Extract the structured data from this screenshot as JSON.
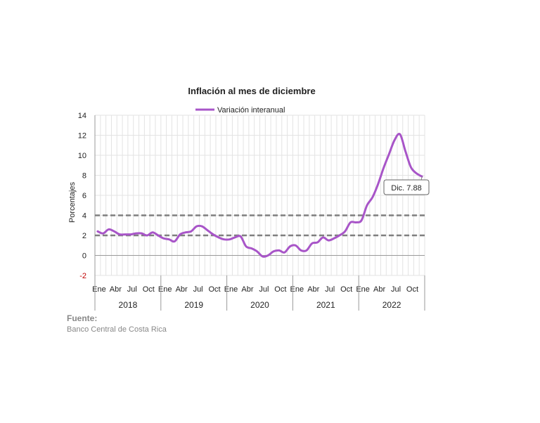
{
  "source": {
    "label": "Fuente:",
    "text": "Banco Central de Costa Rica"
  },
  "chart_data": {
    "type": "line",
    "title": "Inflación al mes de diciembre",
    "ylabel": "Porcentajes",
    "xlabel": "",
    "ylim": [
      -2,
      14
    ],
    "yticks": [
      -2,
      0,
      2,
      4,
      6,
      8,
      10,
      12,
      14
    ],
    "grid": true,
    "legend_placement": "top-center",
    "month_labels": [
      "Ene",
      "Abr",
      "Jul",
      "Oct"
    ],
    "years": [
      "2018",
      "2019",
      "2020",
      "2021",
      "2022"
    ],
    "reference_lines": [
      2,
      4
    ],
    "colors": {
      "series": "#a855c8",
      "reference": "#7f7f7f",
      "negative_tick": "#c00000"
    },
    "annotation": {
      "text": "Dic. 7.88",
      "target_index": 59
    },
    "series": [
      {
        "name": "Variación interanual",
        "values": [
          2.4,
          2.2,
          2.6,
          2.4,
          2.1,
          2.1,
          2.1,
          2.2,
          2.2,
          2.0,
          2.3,
          2.0,
          1.7,
          1.6,
          1.4,
          2.1,
          2.3,
          2.4,
          2.9,
          2.9,
          2.5,
          2.1,
          1.8,
          1.6,
          1.6,
          1.8,
          1.9,
          0.9,
          0.7,
          0.4,
          -0.1,
          0.0,
          0.4,
          0.5,
          0.3,
          0.9,
          1.0,
          0.5,
          0.5,
          1.2,
          1.3,
          1.8,
          1.5,
          1.7,
          2.0,
          2.4,
          3.3,
          3.3,
          3.5,
          5.0,
          5.8,
          7.1,
          8.7,
          10.1,
          11.5,
          12.1,
          10.4,
          8.8,
          8.2,
          7.88
        ]
      }
    ]
  }
}
